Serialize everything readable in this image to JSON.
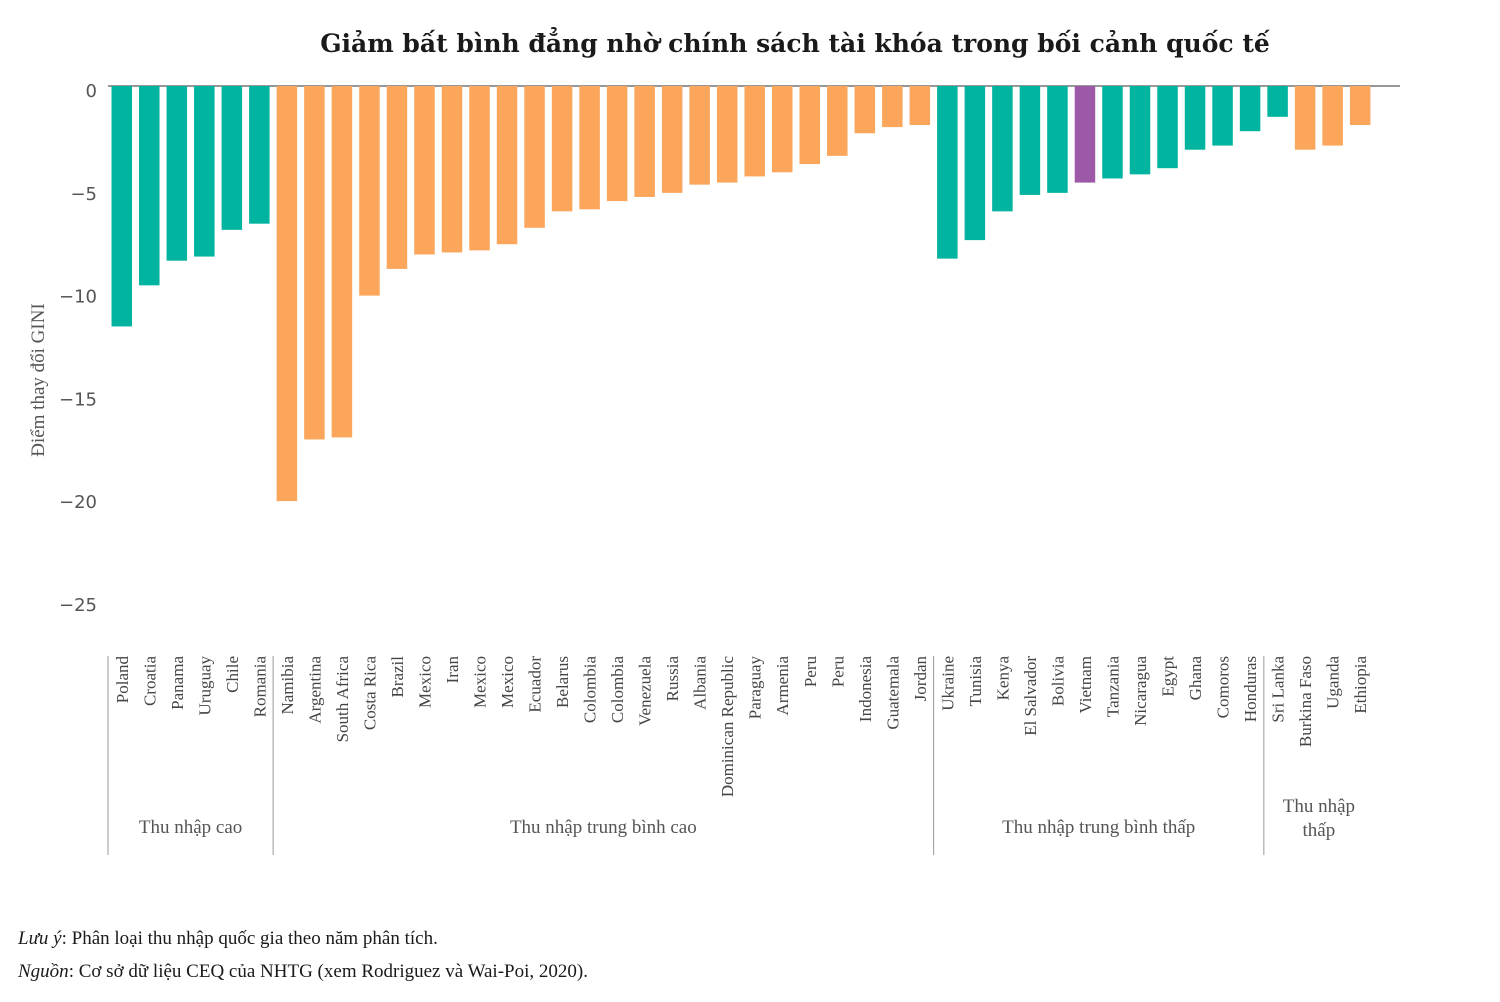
{
  "chart_data": {
    "type": "bar",
    "title": "Giảm bất bình đẳng nhờ chính sách tài khóa trong bối cảnh quốc tế",
    "ylabel": "Điểm thay đổi GINI",
    "xlabel": "",
    "ylim": [
      -27,
      0
    ],
    "yticks": [
      0,
      -5,
      -10,
      -15,
      -20,
      -25
    ],
    "ytick_labels": [
      "0",
      "−5",
      "−10",
      "−15",
      "−20",
      "−25"
    ],
    "colors": {
      "teal": "#00b4a0",
      "orange": "#fba65b",
      "purple": "#9b59a8",
      "axis": "#777777"
    },
    "categories": [
      "Poland",
      "Croatia",
      "Panama",
      "Uruguay",
      "Chile",
      "Romania",
      "Namibia",
      "Argentina",
      "South Africa",
      "Costa Rica",
      "Brazil",
      "Mexico",
      "Iran",
      "Mexico",
      "Mexico",
      "Ecuador",
      "Belarus",
      "Colombia",
      "Colombia",
      "Venezuela",
      "Russia",
      "Albania",
      "Dominican Republic",
      "Paraguay",
      "Armenia",
      "Peru",
      "Peru",
      "Indonesia",
      "Guatemala",
      "Jordan",
      "Ukraine",
      "Tunisia",
      "Kenya",
      "El Salvador",
      "Bolivia",
      "Vietnam",
      "Tanzania",
      "Nicaragua",
      "Egypt",
      "Ghana",
      "Comoros",
      "Honduras",
      "Sri Lanka",
      "Burkina Faso",
      "Uganda",
      "Ethiopia"
    ],
    "values": [
      -11.7,
      -9.7,
      -8.5,
      -8.3,
      -7.0,
      -6.7,
      -20.2,
      -17.2,
      -17.1,
      -10.2,
      -8.9,
      -8.2,
      -8.1,
      -8.0,
      -7.7,
      -6.9,
      -6.1,
      -6.0,
      -5.6,
      -5.4,
      -5.2,
      -4.8,
      -4.7,
      -4.4,
      -4.2,
      -3.8,
      -3.4,
      -2.3,
      -2.0,
      -1.9,
      -8.4,
      -7.5,
      -6.1,
      -5.3,
      -5.2,
      -4.7,
      -4.5,
      -4.3,
      -4.0,
      -3.1,
      -2.9,
      -2.2,
      -1.5,
      -3.1,
      -2.9,
      -1.9
    ],
    "bar_colors": [
      "teal",
      "teal",
      "teal",
      "teal",
      "teal",
      "teal",
      "orange",
      "orange",
      "orange",
      "orange",
      "orange",
      "orange",
      "orange",
      "orange",
      "orange",
      "orange",
      "orange",
      "orange",
      "orange",
      "orange",
      "orange",
      "orange",
      "orange",
      "orange",
      "orange",
      "orange",
      "orange",
      "orange",
      "orange",
      "orange",
      "teal",
      "teal",
      "teal",
      "teal",
      "teal",
      "purple",
      "teal",
      "teal",
      "teal",
      "teal",
      "teal",
      "teal",
      "teal",
      "orange",
      "orange",
      "orange"
    ],
    "groups": [
      {
        "label_lines": [
          "Thu nhập cao"
        ],
        "start": 0,
        "end": 5
      },
      {
        "label_lines": [
          "Thu nhập trung bình cao"
        ],
        "start": 6,
        "end": 29
      },
      {
        "label_lines": [
          "Thu nhập trung bình thấp"
        ],
        "start": 30,
        "end": 41
      },
      {
        "label_lines": [
          "Thu nhập",
          "thấp"
        ],
        "start": 42,
        "end": 45
      }
    ]
  },
  "notes": {
    "note_label": "Lưu ý",
    "note_text": ": Phân loại thu nhập quốc gia theo năm phân tích.",
    "source_label": "Nguồn",
    "source_text": ": Cơ sở dữ liệu CEQ của NHTG (xem Rodriguez và Wai-Poi, 2020)."
  }
}
